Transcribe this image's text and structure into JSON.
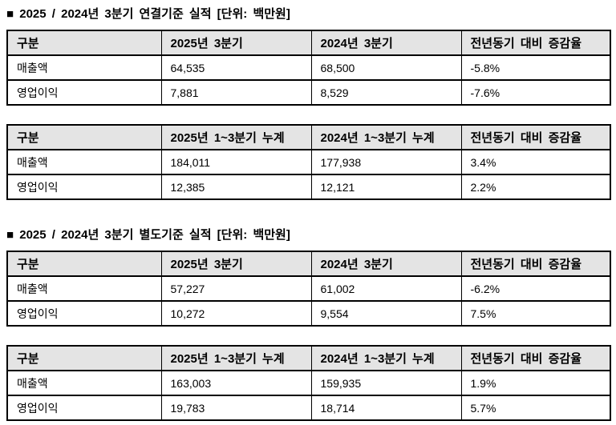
{
  "colors": {
    "header_bg": "#e4e4e4",
    "border": "#000000",
    "text": "#000000",
    "page_bg": "#ffffff"
  },
  "sections": [
    {
      "title": "■ 2025 / 2024년 3분기 연결기준 실적 [단위: 백만원]",
      "tables": [
        {
          "headers": [
            "구분",
            "2025년 3분기",
            "2024년 3분기",
            "전년동기 대비 증감율"
          ],
          "rows": [
            [
              "매출액",
              "64,535",
              "68,500",
              "-5.8%"
            ],
            [
              "영업이익",
              "7,881",
              "8,529",
              "-7.6%"
            ]
          ]
        },
        {
          "headers": [
            "구분",
            "2025년 1~3분기 누계",
            "2024년 1~3분기 누계",
            "전년동기 대비 증감율"
          ],
          "rows": [
            [
              "매출액",
              "184,011",
              "177,938",
              "3.4%"
            ],
            [
              "영업이익",
              "12,385",
              "12,121",
              "2.2%"
            ]
          ]
        }
      ]
    },
    {
      "title": "■ 2025 / 2024년 3분기 별도기준 실적 [단위: 백만원]",
      "tables": [
        {
          "headers": [
            "구분",
            "2025년 3분기",
            "2024년 3분기",
            "전년동기 대비 증감율"
          ],
          "rows": [
            [
              "매출액",
              "57,227",
              "61,002",
              "-6.2%"
            ],
            [
              "영업이익",
              "10,272",
              "9,554",
              "7.5%"
            ]
          ]
        },
        {
          "headers": [
            "구분",
            "2025년 1~3분기 누계",
            "2024년 1~3분기 누계",
            "전년동기 대비 증감율"
          ],
          "rows": [
            [
              "매출액",
              "163,003",
              "159,935",
              "1.9%"
            ],
            [
              "영업이익",
              "19,783",
              "18,714",
              "5.7%"
            ]
          ]
        }
      ]
    }
  ]
}
